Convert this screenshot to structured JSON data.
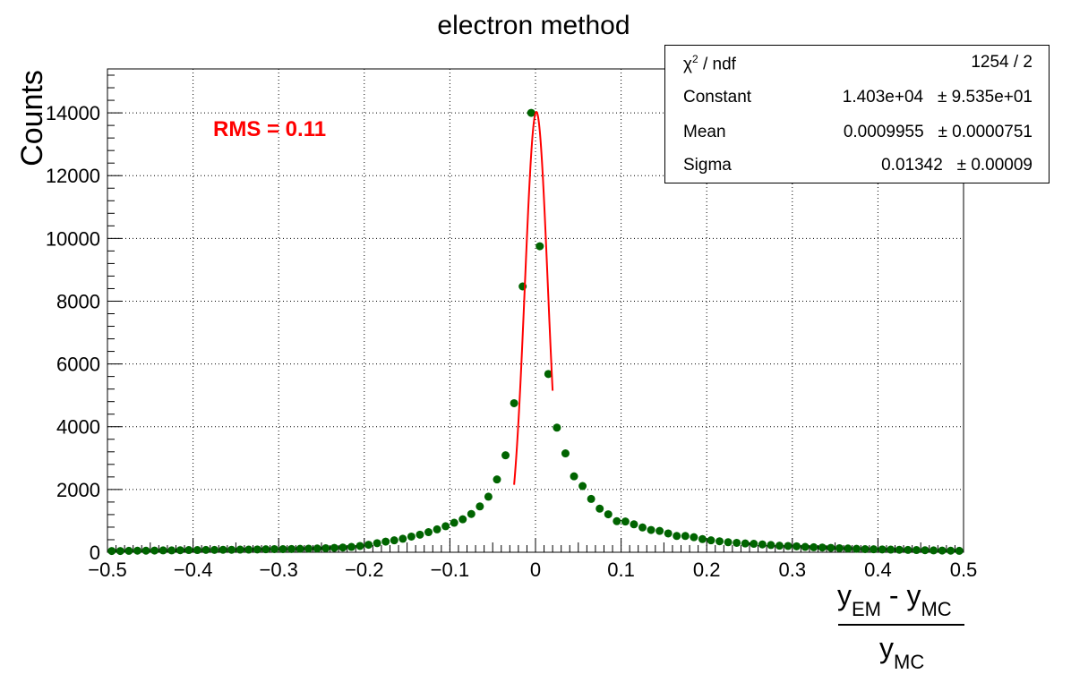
{
  "chart_data": {
    "type": "scatter",
    "title": "electron method",
    "ylabel": "Counts",
    "xlabel": {
      "numerator": [
        "y",
        "EM",
        " - ",
        "y",
        "MC"
      ],
      "denominator": [
        "y",
        "MC"
      ]
    },
    "xlim": [
      -0.5,
      0.5
    ],
    "ylim": [
      0,
      15400
    ],
    "grid": true,
    "xticks": [
      "−0.5",
      "−0.4",
      "−0.3",
      "−0.2",
      "−0.1",
      "0",
      "0.1",
      "0.2",
      "0.3",
      "0.4",
      "0.5"
    ],
    "xtick_values": [
      -0.5,
      -0.4,
      -0.3,
      -0.2,
      -0.1,
      0,
      0.1,
      0.2,
      0.3,
      0.4,
      0.5
    ],
    "yticks": [
      "0",
      "2000",
      "4000",
      "6000",
      "8000",
      "10000",
      "12000",
      "14000"
    ],
    "ytick_values": [
      0,
      2000,
      4000,
      6000,
      8000,
      10000,
      12000,
      14000
    ],
    "annotation": {
      "text": "RMS = 0.11",
      "color": "#ff0000"
    },
    "series": [
      {
        "color": "#006400",
        "x": [
          -0.495,
          -0.485,
          -0.475,
          -0.465,
          -0.455,
          -0.445,
          -0.435,
          -0.425,
          -0.415,
          -0.405,
          -0.395,
          -0.385,
          -0.375,
          -0.365,
          -0.355,
          -0.345,
          -0.335,
          -0.325,
          -0.315,
          -0.305,
          -0.295,
          -0.285,
          -0.275,
          -0.265,
          -0.255,
          -0.245,
          -0.235,
          -0.225,
          -0.215,
          -0.205,
          -0.195,
          -0.185,
          -0.175,
          -0.165,
          -0.155,
          -0.145,
          -0.135,
          -0.125,
          -0.115,
          -0.105,
          -0.095,
          -0.085,
          -0.075,
          -0.065,
          -0.055,
          -0.045,
          -0.035,
          -0.025,
          -0.015,
          -0.005,
          0.005,
          0.015,
          0.025,
          0.035,
          0.045,
          0.055,
          0.065,
          0.075,
          0.085,
          0.095,
          0.105,
          0.115,
          0.125,
          0.135,
          0.145,
          0.155,
          0.165,
          0.175,
          0.185,
          0.195,
          0.205,
          0.215,
          0.225,
          0.235,
          0.245,
          0.255,
          0.265,
          0.275,
          0.285,
          0.295,
          0.305,
          0.315,
          0.325,
          0.335,
          0.345,
          0.355,
          0.365,
          0.375,
          0.385,
          0.395,
          0.405,
          0.415,
          0.425,
          0.435,
          0.445,
          0.455,
          0.465,
          0.475,
          0.485,
          0.495
        ],
        "y": [
          40,
          40,
          45,
          50,
          50,
          55,
          60,
          60,
          65,
          70,
          70,
          75,
          75,
          80,
          80,
          85,
          85,
          90,
          95,
          100,
          100,
          105,
          110,
          115,
          120,
          130,
          140,
          150,
          170,
          200,
          240,
          290,
          340,
          380,
          430,
          500,
          560,
          640,
          730,
          830,
          940,
          1050,
          1220,
          1460,
          1770,
          2320,
          3090,
          4750,
          8470,
          14000,
          9750,
          5680,
          3970,
          3150,
          2420,
          2110,
          1700,
          1390,
          1210,
          990,
          980,
          890,
          790,
          710,
          680,
          600,
          520,
          520,
          480,
          420,
          380,
          350,
          320,
          300,
          280,
          270,
          250,
          230,
          210,
          200,
          190,
          170,
          160,
          150,
          140,
          130,
          120,
          110,
          100,
          95,
          90,
          85,
          80,
          75,
          70,
          65,
          60,
          55,
          50,
          45
        ]
      }
    ],
    "fit": {
      "color": "#ff0000",
      "x_range": [
        -0.025,
        0.02
      ],
      "constant": 14030,
      "mean": 0.0009955,
      "sigma": 0.01342
    },
    "stats_box": {
      "rows": [
        {
          "label_main": "χ",
          "label_sup": "2",
          "label_rest": " / ndf",
          "value": "1254 / 2"
        },
        {
          "label": "Constant",
          "value": "1.403e+04   ± 9.535e+01"
        },
        {
          "label": "Mean",
          "value": "0.0009955   ± 0.0000751"
        },
        {
          "label": "Sigma",
          "value": "0.01342   ± 0.00009"
        }
      ]
    }
  }
}
